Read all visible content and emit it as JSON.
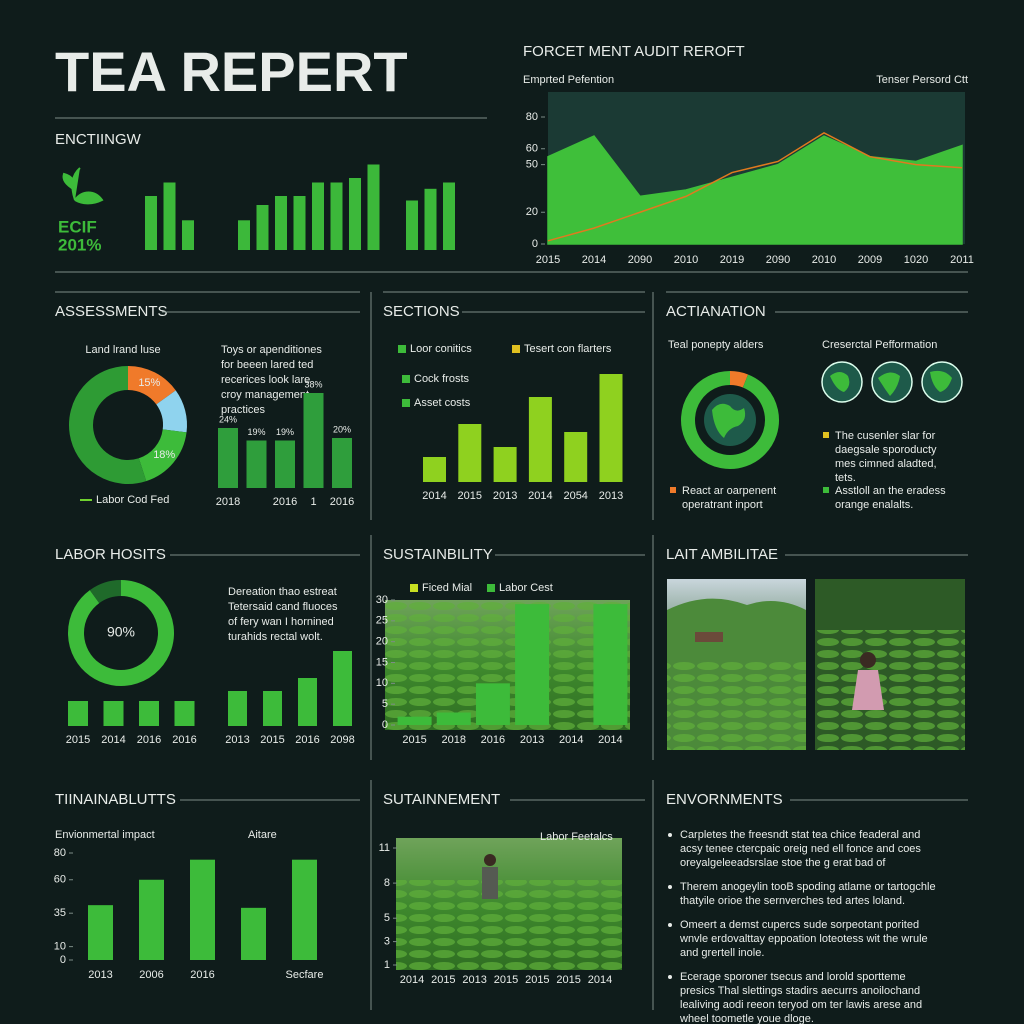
{
  "header": {
    "title": "TEA REPERT",
    "section": "ENCTIINGW",
    "badge": [
      "ECIF",
      "201%"
    ]
  },
  "panels": {
    "assessments": {
      "heading": "ASSESSMENTS",
      "text": [
        "Toys or apenditiones",
        "for beeen lared ted",
        "recerices look lare",
        "croy management",
        "practices"
      ]
    },
    "sections": {
      "heading": "SECTIONS"
    },
    "actianation": {
      "heading": "ACTIANATION",
      "left_label": "Teal ponepty alders",
      "right_label": "Creserctal Pefformation",
      "notes": [
        [
          "React ar oarpenent",
          "operatrant inport"
        ],
        [
          "The cusenler slar for",
          "daegsale sporoducty",
          "mes cimned aladted,",
          "tets."
        ],
        [
          "Asstloll an the eradess",
          "orange enalalts."
        ]
      ]
    },
    "labor": {
      "heading": "LABOR HOSITS",
      "text": [
        "Dereation thao estreat",
        "Tetersaid cand fluoces",
        "of fery wan I hornined",
        "turahids rectal wolt."
      ]
    },
    "sustainbility": {
      "heading": "SUSTAINBILITY"
    },
    "ambilitae": {
      "heading": "LAIT AMBILITAE"
    },
    "tiinainablutts": {
      "heading": "TIINAINABLUTTS"
    },
    "sutainnement": {
      "heading": "SUTAINNEMENT"
    },
    "envornments": {
      "heading": "ENVORNMENTS",
      "bullets": [
        [
          "Carpletes the freesndt stat tea chice feaderal and",
          "acsy tenee ctercpaic oreig ned ell fonce and coes",
          "oreyalgeleeadsrslae stoe the g erat bad of"
        ],
        [
          "Therem anogeylin tooB spoding atlame or tartogchle",
          "thatyile orioe the sernverches ted artes loland."
        ],
        [
          "Omeert a demst cupercs sude sorpeotant porited",
          "wnvle erdovalttay eppoation loteotess wit the wrule",
          "and grertell inole."
        ],
        [
          "Ecerage sporoner tsecus and lorold sportteme",
          "presics Thal slettings stadirs aecurrs anoilochand",
          "lealiving aodi reeon teryod om ter lawis arese and",
          "wheel toometle youe dloge."
        ]
      ]
    }
  },
  "chart_data": [
    {
      "type": "area",
      "title": "FORCET MENT AUDIT REROFT",
      "subtitle": "Emprted Pefention",
      "right_label": "Tenser Persord Ctt",
      "categories": [
        "2015",
        "2014",
        "2090",
        "2010",
        "2019",
        "2090",
        "2010",
        "2009",
        "1020",
        "2011"
      ],
      "series": [
        {
          "kind": "area",
          "color": "#3fbf3a",
          "values": [
            55,
            68,
            30,
            34,
            42,
            50,
            68,
            55,
            52,
            62
          ]
        },
        {
          "kind": "line",
          "color": "#e07a1f",
          "values": [
            2,
            10,
            20,
            30,
            45,
            52,
            70,
            55,
            50,
            48
          ]
        }
      ],
      "ylim": [
        0,
        80
      ],
      "yticks": [
        0,
        20,
        50,
        60,
        80
      ]
    },
    {
      "type": "bar",
      "series": [
        {
          "color": "#3cb83a",
          "values": [
            60,
            75,
            33
          ]
        },
        {
          "color": "#3cb83a",
          "values": [
            33,
            50,
            60,
            60,
            75,
            75,
            80,
            95
          ]
        },
        {
          "color": "#3cb83a",
          "values": [
            55,
            68,
            75
          ]
        }
      ]
    },
    {
      "type": "donut",
      "label": "Land lrand luse",
      "values": [
        15,
        12,
        18,
        55
      ],
      "value_labels": [
        "15%",
        null,
        "18%",
        null
      ],
      "colors": [
        "#f07a2a",
        "#8fd3ee",
        "#3dbb3a",
        "#2e9b34"
      ],
      "legend": "Labor Cod Fed",
      "legend_color": "#6fd12f"
    },
    {
      "type": "bar",
      "categories": [
        "2018",
        null,
        "2016",
        "1",
        "2016"
      ],
      "values": [
        24,
        19,
        19,
        38,
        20
      ],
      "value_labels": [
        "24%",
        "19%",
        "19%",
        "38%",
        "20%"
      ],
      "color": "#2f9e3c"
    },
    {
      "type": "bar",
      "categories": [
        "2014",
        "2015",
        "2013",
        "2014",
        "2054",
        "2013"
      ],
      "values": [
        25,
        58,
        35,
        85,
        50,
        108
      ],
      "colors": [
        "#8fd11f",
        "#8fd11f",
        "#8fd11f",
        "#8fd11f",
        "#8fd11f",
        "#8fd11f"
      ],
      "legend": [
        {
          "name": "Loor conitics",
          "color": "#3dbb3a"
        },
        {
          "name": "Tesert con flarters",
          "color": "#e0c020"
        },
        {
          "name": "Cock frosts",
          "color": "#3dbb3a"
        },
        {
          "name": "Asset costs",
          "color": "#3dbb3a"
        }
      ]
    },
    {
      "type": "donut",
      "values": [
        6,
        94
      ],
      "colors": [
        "#f07a2a",
        "#3dbb3a"
      ]
    },
    {
      "type": "donut",
      "values": [
        90,
        10
      ],
      "value_labels": [
        "90%",
        null
      ],
      "colors": [
        "#3dbb3a",
        "#1f6a2a"
      ]
    },
    {
      "type": "bar",
      "categories": [
        "2015",
        "2014",
        "2016",
        "2016"
      ],
      "values": [
        25,
        25,
        25,
        25
      ],
      "color": "#3dbb3a"
    },
    {
      "type": "bar",
      "categories": [
        "2013",
        "2015",
        "2016",
        "2098"
      ],
      "values": [
        35,
        35,
        48,
        75
      ],
      "color": "#3dbb3a"
    },
    {
      "type": "bar",
      "categories": [
        "2015",
        "2018",
        "2016",
        "2013",
        "2014",
        "2014"
      ],
      "values": [
        2,
        3,
        10,
        29,
        null,
        29
      ],
      "color": "#3dbb3a",
      "ylim": [
        0,
        30
      ],
      "yticks": [
        0,
        5,
        10,
        15,
        20,
        25,
        30
      ],
      "legend": [
        {
          "name": "Ficed Mial",
          "color": "#c8e022"
        },
        {
          "name": "Labor Cest",
          "color": "#3dbb3a"
        }
      ]
    },
    {
      "type": "bar",
      "label": "Envionmertal impact",
      "right_label": "Aitare",
      "categories": [
        "2013",
        "2006",
        "2016",
        null,
        "Secfare"
      ],
      "values": [
        41,
        60,
        75,
        39,
        75
      ],
      "color": "#3dbb3a",
      "ylim": [
        0,
        80
      ],
      "yticks": [
        0,
        10,
        35,
        60,
        80
      ]
    },
    {
      "type": "axis",
      "label": "Labor Feetalcs",
      "categories": [
        "2014",
        "2015",
        "2013",
        "2015",
        "2015",
        "2015",
        "2014"
      ],
      "ylim": [
        1,
        11
      ],
      "yticks": [
        1,
        3,
        5,
        8,
        11
      ]
    }
  ]
}
